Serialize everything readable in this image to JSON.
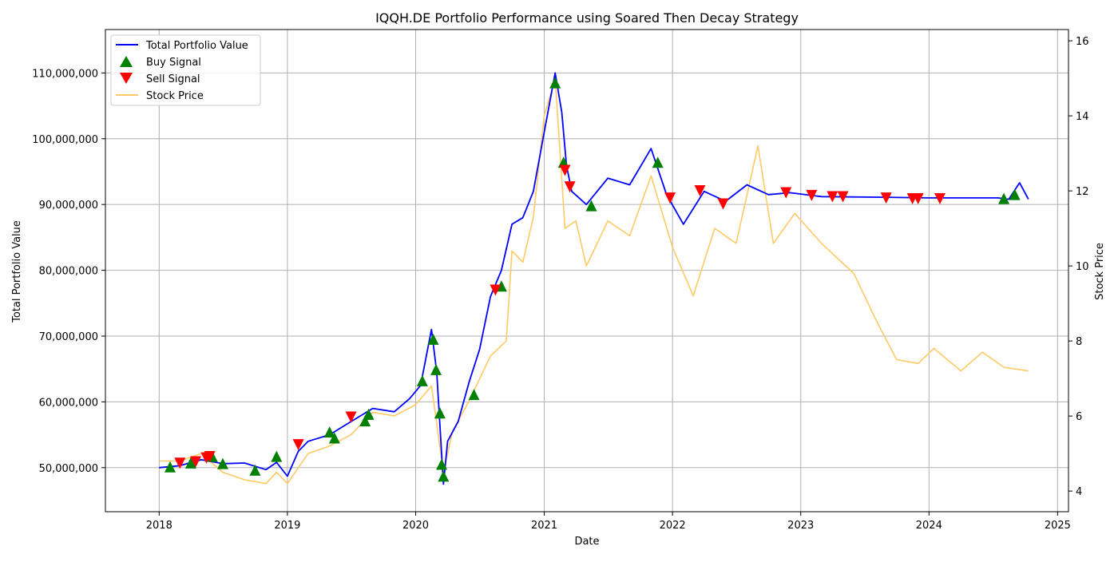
{
  "chart_data": {
    "type": "line",
    "title": "IQQH.DE Portfolio Performance using Soared Then Decay Strategy",
    "xlabel": "Date",
    "ylabel_left": "Total Portfolio Value",
    "ylabel_right": "Stock Price",
    "grid": true,
    "legend_placement": "top-left",
    "x_ticks": [
      "2018",
      "2019",
      "2020",
      "2021",
      "2022",
      "2023",
      "2024",
      "2025"
    ],
    "y_left_ticks": [
      "50,000,000",
      "60,000,000",
      "70,000,000",
      "80,000,000",
      "90,000,000",
      "100,000,000",
      "110,000,000"
    ],
    "y_right_ticks": [
      "4",
      "6",
      "8",
      "10",
      "12",
      "14",
      "16"
    ],
    "xlim": [
      "2017-08-01",
      "2025-02-01"
    ],
    "ylim_left": [
      43300000,
      116600000
    ],
    "ylim_right": [
      3.45,
      16.3
    ],
    "colors": {
      "portfolio": "#0000ff",
      "price": "#ffc966",
      "buy": "#008000",
      "sell": "#ff0000",
      "grid": "#b0b0b0"
    },
    "series": [
      {
        "name": "Total Portfolio Value",
        "axis": "left",
        "points": [
          [
            "2018-01-01",
            50000000
          ],
          [
            "2018-03-01",
            50300000
          ],
          [
            "2018-05-01",
            51200000
          ],
          [
            "2018-07-01",
            50600000
          ],
          [
            "2018-09-01",
            50700000
          ],
          [
            "2018-11-01",
            49700000
          ],
          [
            "2018-12-01",
            50800000
          ],
          [
            "2019-01-01",
            48700000
          ],
          [
            "2019-02-01",
            52500000
          ],
          [
            "2019-03-01",
            54000000
          ],
          [
            "2019-05-01",
            55000000
          ],
          [
            "2019-07-01",
            57000000
          ],
          [
            "2019-09-01",
            59000000
          ],
          [
            "2019-11-01",
            58500000
          ],
          [
            "2019-12-15",
            60500000
          ],
          [
            "2020-01-15",
            62500000
          ],
          [
            "2020-02-15",
            71000000
          ],
          [
            "2020-03-01",
            64500000
          ],
          [
            "2020-03-20",
            47500000
          ],
          [
            "2020-04-01",
            54000000
          ],
          [
            "2020-05-01",
            57000000
          ],
          [
            "2020-06-01",
            63000000
          ],
          [
            "2020-07-01",
            68000000
          ],
          [
            "2020-08-01",
            76000000
          ],
          [
            "2020-09-01",
            80000000
          ],
          [
            "2020-10-01",
            87000000
          ],
          [
            "2020-11-01",
            88000000
          ],
          [
            "2020-12-01",
            92000000
          ],
          [
            "2021-01-01",
            101000000
          ],
          [
            "2021-02-01",
            110000000
          ],
          [
            "2021-02-20",
            104000000
          ],
          [
            "2021-03-05",
            96000000
          ],
          [
            "2021-03-20",
            92000000
          ],
          [
            "2021-05-01",
            90000000
          ],
          [
            "2021-07-01",
            94000000
          ],
          [
            "2021-09-01",
            93000000
          ],
          [
            "2021-11-01",
            98500000
          ],
          [
            "2021-12-15",
            91500000
          ],
          [
            "2022-02-01",
            87000000
          ],
          [
            "2022-04-01",
            92000000
          ],
          [
            "2022-06-01",
            90500000
          ],
          [
            "2022-08-01",
            93000000
          ],
          [
            "2022-10-01",
            91500000
          ],
          [
            "2022-12-01",
            91800000
          ],
          [
            "2023-03-01",
            91200000
          ],
          [
            "2023-09-01",
            91100000
          ],
          [
            "2024-01-01",
            91000000
          ],
          [
            "2024-07-15",
            91000000
          ],
          [
            "2024-08-15",
            90800000
          ],
          [
            "2024-09-15",
            93300000
          ],
          [
            "2024-10-10",
            90800000
          ]
        ]
      },
      {
        "name": "Stock Price",
        "axis": "right",
        "points": [
          [
            "2018-01-01",
            4.8
          ],
          [
            "2018-03-01",
            4.8
          ],
          [
            "2018-05-01",
            5.0
          ],
          [
            "2018-07-01",
            4.5
          ],
          [
            "2018-09-01",
            4.3
          ],
          [
            "2018-11-01",
            4.2
          ],
          [
            "2018-12-01",
            4.5
          ],
          [
            "2019-01-01",
            4.2
          ],
          [
            "2019-03-01",
            5.0
          ],
          [
            "2019-05-01",
            5.2
          ],
          [
            "2019-07-01",
            5.5
          ],
          [
            "2019-09-01",
            6.1
          ],
          [
            "2019-11-01",
            6.0
          ],
          [
            "2020-01-01",
            6.3
          ],
          [
            "2020-02-15",
            6.8
          ],
          [
            "2020-03-20",
            4.5
          ],
          [
            "2020-04-15",
            5.6
          ],
          [
            "2020-06-01",
            6.4
          ],
          [
            "2020-08-01",
            7.6
          ],
          [
            "2020-09-15",
            8.0
          ],
          [
            "2020-10-01",
            10.4
          ],
          [
            "2020-11-01",
            10.1
          ],
          [
            "2020-12-01",
            11.3
          ],
          [
            "2021-01-01",
            14.0
          ],
          [
            "2021-02-01",
            15.0
          ],
          [
            "2021-03-01",
            11.0
          ],
          [
            "2021-04-01",
            11.2
          ],
          [
            "2021-05-01",
            10.0
          ],
          [
            "2021-07-01",
            11.2
          ],
          [
            "2021-09-01",
            10.8
          ],
          [
            "2021-11-01",
            12.4
          ],
          [
            "2022-01-01",
            10.5
          ],
          [
            "2022-03-01",
            9.2
          ],
          [
            "2022-05-01",
            11.0
          ],
          [
            "2022-07-01",
            10.6
          ],
          [
            "2022-09-01",
            13.2
          ],
          [
            "2022-10-15",
            10.6
          ],
          [
            "2022-12-15",
            11.4
          ],
          [
            "2023-03-01",
            10.6
          ],
          [
            "2023-06-01",
            9.8
          ],
          [
            "2023-08-01",
            8.6
          ],
          [
            "2023-10-01",
            7.5
          ],
          [
            "2023-12-01",
            7.4
          ],
          [
            "2024-01-15",
            7.8
          ],
          [
            "2024-04-01",
            7.2
          ],
          [
            "2024-06-01",
            7.7
          ],
          [
            "2024-08-01",
            7.3
          ],
          [
            "2024-10-10",
            7.2
          ]
        ]
      }
    ],
    "buy_signals": [
      [
        "2018-02-01",
        50000000
      ],
      [
        "2018-04-01",
        50600000
      ],
      [
        "2018-06-01",
        51600000
      ],
      [
        "2018-07-01",
        50500000
      ],
      [
        "2018-10-01",
        49500000
      ],
      [
        "2018-12-01",
        51600000
      ],
      [
        "2019-05-01",
        55300000
      ],
      [
        "2019-05-15",
        54400000
      ],
      [
        "2019-08-10",
        57000000
      ],
      [
        "2019-08-20",
        58000000
      ],
      [
        "2020-01-20",
        63100000
      ],
      [
        "2020-02-20",
        69400000
      ],
      [
        "2020-02-28",
        64800000
      ],
      [
        "2020-03-10",
        58200000
      ],
      [
        "2020-03-15",
        50400000
      ],
      [
        "2020-03-20",
        48600000
      ],
      [
        "2020-06-15",
        61000000
      ],
      [
        "2020-09-01",
        77500000
      ],
      [
        "2021-02-01",
        108400000
      ],
      [
        "2021-02-25",
        96300000
      ],
      [
        "2021-05-15",
        89700000
      ],
      [
        "2021-11-20",
        96300000
      ],
      [
        "2024-08-01",
        90800000
      ],
      [
        "2024-09-01",
        91400000
      ]
    ],
    "sell_signals": [
      [
        "2018-03-01",
        50800000
      ],
      [
        "2018-04-15",
        51000000
      ],
      [
        "2018-05-15",
        51600000
      ],
      [
        "2018-05-25",
        51800000
      ],
      [
        "2019-02-01",
        53600000
      ],
      [
        "2019-07-01",
        57800000
      ],
      [
        "2020-08-15",
        77100000
      ],
      [
        "2021-03-01",
        95300000
      ],
      [
        "2021-03-15",
        92800000
      ],
      [
        "2021-12-25",
        91100000
      ],
      [
        "2022-03-20",
        92200000
      ],
      [
        "2022-05-25",
        90200000
      ],
      [
        "2022-11-20",
        91900000
      ],
      [
        "2023-02-01",
        91500000
      ],
      [
        "2023-04-01",
        91300000
      ],
      [
        "2023-05-01",
        91300000
      ],
      [
        "2023-09-01",
        91100000
      ],
      [
        "2023-11-15",
        91000000
      ],
      [
        "2023-12-01",
        91000000
      ],
      [
        "2024-02-01",
        91000000
      ]
    ],
    "legend": [
      {
        "label": "Total Portfolio Value",
        "symbol": "line",
        "color": "#0000ff"
      },
      {
        "label": "Buy Signal",
        "symbol": "triangle-up",
        "color": "#008000"
      },
      {
        "label": "Sell Signal",
        "symbol": "triangle-down",
        "color": "#ff0000"
      },
      {
        "label": "Stock Price",
        "symbol": "line",
        "color": "#ffc966"
      }
    ]
  }
}
